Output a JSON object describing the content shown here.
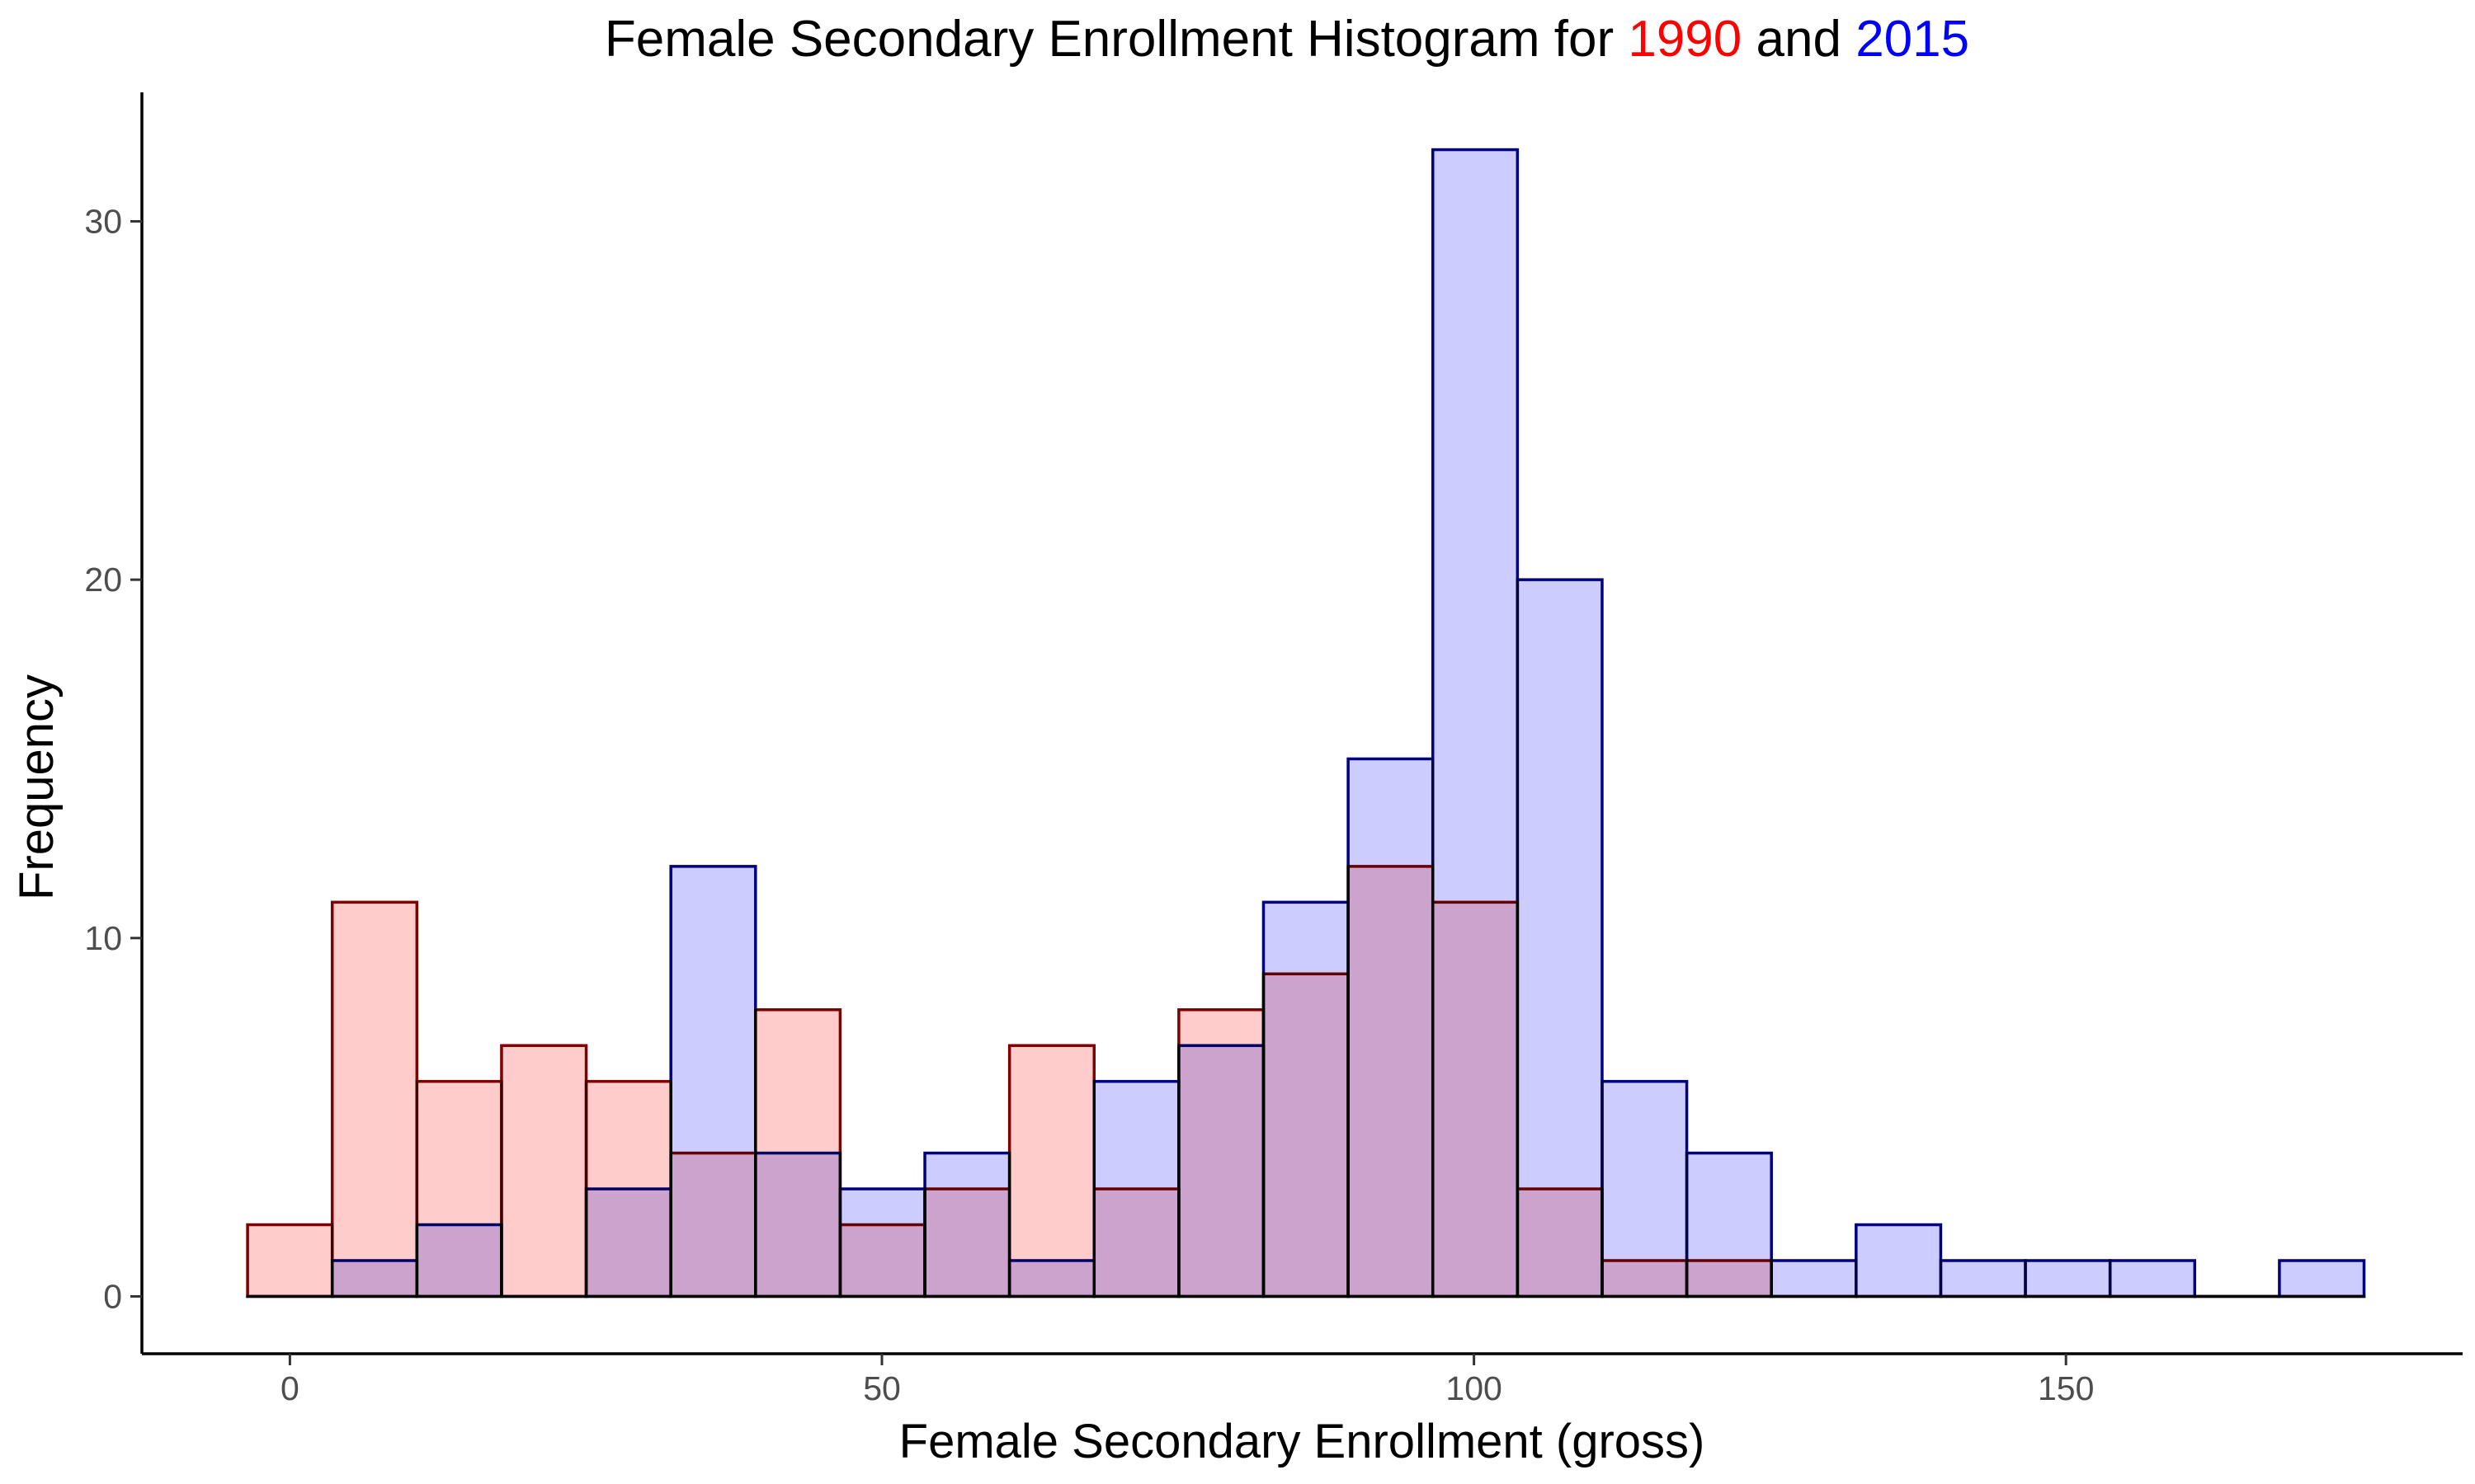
{
  "chart_data": {
    "type": "histogram",
    "title": {
      "prefix": "Female Secondary Enrollment Histogram for ",
      "series1_label": "1990",
      "connector": " and ",
      "series2_label": "2015"
    },
    "xlabel": "Female Secondary Enrollment (gross)",
    "ylabel": "Frequency",
    "xlim": [
      -12.5,
      183.5
    ],
    "ylim": [
      -1.6,
      33.6
    ],
    "x_ticks": [
      0,
      50,
      100,
      150
    ],
    "x_tick_labels": [
      "0",
      "50",
      "100",
      "150"
    ],
    "y_ticks": [
      0,
      10,
      20,
      30
    ],
    "y_tick_labels": [
      "0",
      "10",
      "20",
      "30"
    ],
    "bin_width": 7.15,
    "bin_centers": [
      0,
      7.15,
      14.3,
      21.45,
      28.6,
      35.75,
      42.9,
      50.05,
      57.2,
      64.35,
      71.5,
      78.65,
      85.8,
      92.95,
      100.1,
      107.25,
      114.4,
      121.55,
      128.7,
      135.85,
      143,
      150.15,
      157.3,
      164.45,
      171.6
    ],
    "grid": false,
    "legend": "none (series colors shown in title)",
    "series": [
      {
        "name": "1990",
        "fill": "#ffcccc",
        "stroke": "#800000",
        "title_color": "#ff0000",
        "values": [
          2,
          11,
          6,
          7,
          6,
          4,
          8,
          2,
          3,
          7,
          3,
          8,
          9,
          12,
          11,
          3,
          1,
          1,
          0,
          0,
          0,
          0,
          0,
          0,
          0
        ]
      },
      {
        "name": "2015",
        "fill": "#ccccff",
        "stroke": "#000080",
        "title_color": "#0000ff",
        "values": [
          0,
          1,
          2,
          0,
          3,
          12,
          4,
          3,
          4,
          1,
          6,
          7,
          11,
          15,
          32,
          20,
          6,
          4,
          1,
          2,
          1,
          1,
          1,
          0,
          1
        ]
      }
    ]
  }
}
